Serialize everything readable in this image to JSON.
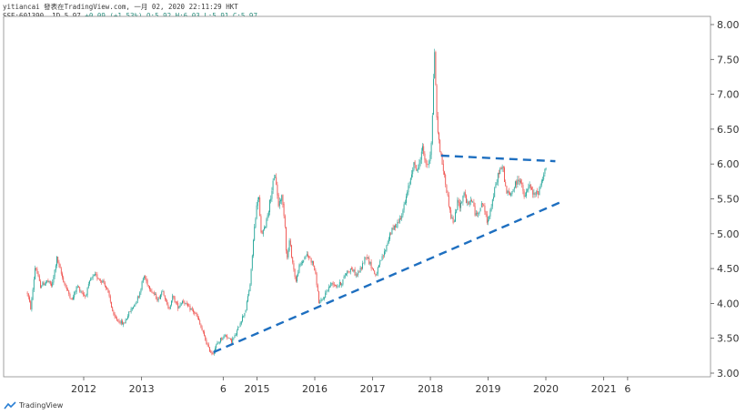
{
  "header": {
    "line1": "yitiancai 發表在TradingView.com, 一月 02, 2020 22:11:29 HKT",
    "line2_prefix": "SSE:601390, 1D 5.97 ",
    "line2_change": "+0.09 (+1.53%)",
    "line2_ohlc": " O:5.92 H:6.03 L:5.91 C:5.97"
  },
  "footer": {
    "brand": "TradingView",
    "logo_icon": "tradingview-logo-icon"
  },
  "colors": {
    "up": "#26a69a",
    "down": "#ef5350",
    "trendline": "#1e6fc0",
    "axis": "#555555"
  },
  "chart_data": {
    "type": "line",
    "symbol": "SSE:601390",
    "interval": "1D",
    "ylim": [
      3.0,
      8.0
    ],
    "y_ticks": [
      "8.00",
      "7.50",
      "7.00",
      "6.50",
      "6.00",
      "5.50",
      "5.00",
      "4.50",
      "4.00",
      "3.50",
      "3.00"
    ],
    "x_ticks": [
      "2012",
      "2013",
      "6",
      "2015",
      "2016",
      "2017",
      "2018",
      "2019",
      "2020",
      "2021",
      "6"
    ],
    "price_path": [
      [
        "2011-01-10",
        4.15
      ],
      [
        "2011-02-01",
        3.92
      ],
      [
        "2011-03-01",
        4.55
      ],
      [
        "2011-04-01",
        4.25
      ],
      [
        "2011-05-15",
        4.32
      ],
      [
        "2011-06-15",
        4.25
      ],
      [
        "2011-07-15",
        4.65
      ],
      [
        "2011-08-15",
        4.4
      ],
      [
        "2011-09-15",
        4.2
      ],
      [
        "2011-10-20",
        4.05
      ],
      [
        "2011-11-20",
        4.25
      ],
      [
        "2012-01-10",
        4.1
      ],
      [
        "2012-02-15",
        4.35
      ],
      [
        "2012-03-15",
        4.4
      ],
      [
        "2012-04-10",
        4.35
      ],
      [
        "2012-05-10",
        4.3
      ],
      [
        "2012-06-10",
        4.1
      ],
      [
        "2012-07-10",
        3.8
      ],
      [
        "2012-08-10",
        3.75
      ],
      [
        "2012-09-10",
        3.7
      ],
      [
        "2012-10-10",
        3.85
      ],
      [
        "2012-11-20",
        4.0
      ],
      [
        "2012-12-20",
        4.15
      ],
      [
        "2013-01-15",
        4.4
      ],
      [
        "2013-02-15",
        4.25
      ],
      [
        "2013-03-15",
        4.15
      ],
      [
        "2013-04-15",
        4.05
      ],
      [
        "2013-05-15",
        4.2
      ],
      [
        "2013-06-20",
        3.9
      ],
      [
        "2013-07-15",
        4.1
      ],
      [
        "2013-08-20",
        3.95
      ],
      [
        "2013-09-20",
        4.05
      ],
      [
        "2013-10-20",
        3.95
      ],
      [
        "2013-11-20",
        3.9
      ],
      [
        "2013-12-20",
        3.8
      ],
      [
        "2014-01-20",
        3.6
      ],
      [
        "2014-03-01",
        3.35
      ],
      [
        "2014-03-25",
        3.28
      ],
      [
        "2014-04-20",
        3.4
      ],
      [
        "2014-05-20",
        3.5
      ],
      [
        "2014-06-20",
        3.55
      ],
      [
        "2014-07-20",
        3.45
      ],
      [
        "2014-08-20",
        3.55
      ],
      [
        "2014-09-20",
        3.75
      ],
      [
        "2014-10-20",
        3.9
      ],
      [
        "2014-11-20",
        4.3
      ],
      [
        "2014-12-05",
        4.8
      ],
      [
        "2014-12-20",
        5.2
      ],
      [
        "2015-01-10",
        5.6
      ],
      [
        "2015-01-25",
        5.0
      ],
      [
        "2015-02-15",
        5.05
      ],
      [
        "2015-03-15",
        5.35
      ],
      [
        "2015-04-10",
        5.7
      ],
      [
        "2015-04-28",
        5.85
      ],
      [
        "2015-05-15",
        5.4
      ],
      [
        "2015-06-05",
        5.55
      ],
      [
        "2015-06-25",
        5.2
      ],
      [
        "2015-07-08",
        4.6
      ],
      [
        "2015-07-25",
        4.9
      ],
      [
        "2015-08-20",
        4.5
      ],
      [
        "2015-09-05",
        4.3
      ],
      [
        "2015-09-20",
        4.5
      ],
      [
        "2015-10-15",
        4.6
      ],
      [
        "2015-11-05",
        4.7
      ],
      [
        "2015-12-01",
        4.65
      ],
      [
        "2015-12-25",
        4.55
      ],
      [
        "2016-01-10",
        4.35
      ],
      [
        "2016-01-28",
        4.0
      ],
      [
        "2016-02-20",
        4.05
      ],
      [
        "2016-03-20",
        4.2
      ],
      [
        "2016-04-20",
        4.3
      ],
      [
        "2016-05-20",
        4.25
      ],
      [
        "2016-06-20",
        4.3
      ],
      [
        "2016-07-20",
        4.45
      ],
      [
        "2016-08-20",
        4.5
      ],
      [
        "2016-09-20",
        4.4
      ],
      [
        "2016-10-20",
        4.5
      ],
      [
        "2016-11-20",
        4.7
      ],
      [
        "2016-12-20",
        4.55
      ],
      [
        "2017-01-20",
        4.4
      ],
      [
        "2017-02-20",
        4.6
      ],
      [
        "2017-03-20",
        4.75
      ],
      [
        "2017-04-20",
        5.0
      ],
      [
        "2017-05-20",
        5.1
      ],
      [
        "2017-06-20",
        5.2
      ],
      [
        "2017-07-20",
        5.4
      ],
      [
        "2017-08-20",
        5.7
      ],
      [
        "2017-09-15",
        6.0
      ],
      [
        "2017-10-15",
        5.9
      ],
      [
        "2017-11-10",
        6.25
      ],
      [
        "2017-12-10",
        5.95
      ],
      [
        "2017-12-28",
        6.1
      ],
      [
        "2018-01-10",
        6.4
      ],
      [
        "2018-01-18",
        7.0
      ],
      [
        "2018-01-26",
        7.7
      ],
      [
        "2018-02-01",
        7.4
      ],
      [
        "2018-02-08",
        6.7
      ],
      [
        "2018-02-20",
        6.4
      ],
      [
        "2018-03-10",
        6.1
      ],
      [
        "2018-03-25",
        5.9
      ],
      [
        "2018-04-15",
        5.6
      ],
      [
        "2018-05-10",
        5.25
      ],
      [
        "2018-05-30",
        5.15
      ],
      [
        "2018-06-20",
        5.45
      ],
      [
        "2018-07-10",
        5.4
      ],
      [
        "2018-08-01",
        5.6
      ],
      [
        "2018-08-25",
        5.4
      ],
      [
        "2018-09-20",
        5.5
      ],
      [
        "2018-10-15",
        5.25
      ],
      [
        "2018-11-05",
        5.35
      ],
      [
        "2018-12-01",
        5.45
      ],
      [
        "2018-12-25",
        5.15
      ],
      [
        "2019-01-20",
        5.4
      ],
      [
        "2019-02-20",
        5.7
      ],
      [
        "2019-03-10",
        5.9
      ],
      [
        "2019-04-05",
        5.95
      ],
      [
        "2019-04-25",
        5.6
      ],
      [
        "2019-05-20",
        5.55
      ],
      [
        "2019-06-20",
        5.7
      ],
      [
        "2019-07-20",
        5.8
      ],
      [
        "2019-08-20",
        5.5
      ],
      [
        "2019-09-15",
        5.7
      ],
      [
        "2019-10-15",
        5.55
      ],
      [
        "2019-11-15",
        5.6
      ],
      [
        "2019-12-10",
        5.8
      ],
      [
        "2019-12-25",
        5.9
      ],
      [
        "2020-01-02",
        5.97
      ]
    ],
    "trendlines": [
      {
        "name": "support",
        "style": "dashed",
        "start": [
          "2014-04-01",
          3.3
        ],
        "end": [
          "2020-04-01",
          5.45
        ]
      },
      {
        "name": "resistance",
        "style": "dashed",
        "start": [
          "2018-03-10",
          6.12
        ],
        "end": [
          "2020-03-01",
          6.04
        ]
      }
    ]
  }
}
